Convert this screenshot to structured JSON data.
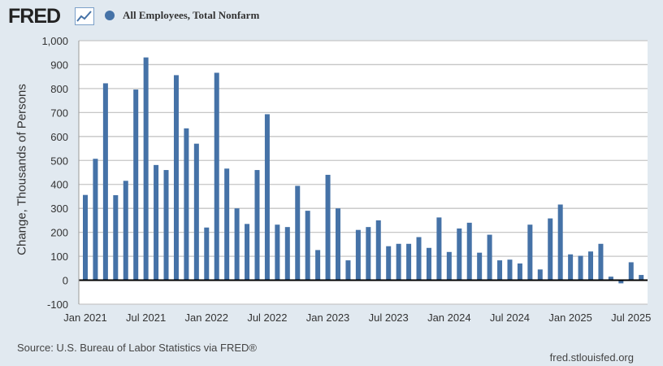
{
  "header": {
    "logo": "FRED",
    "series_name": "All Employees, Total Nonfarm"
  },
  "footer": {
    "source": "Source: U.S. Bureau of Labor Statistics via FRED®",
    "url": "fred.stlouisfed.org"
  },
  "chart_data": {
    "type": "bar",
    "title": "All Employees, Total Nonfarm",
    "ylabel": "Change, Thousands of Persons",
    "xlabel": "",
    "ylim": [
      -100,
      1000
    ],
    "grid": true,
    "bar_color": "#4572a7",
    "yticks": [
      "-100",
      "0",
      "100",
      "200",
      "300",
      "400",
      "500",
      "600",
      "700",
      "800",
      "900",
      "1,000"
    ],
    "xticks": [
      "Jan 2021",
      "Jul 2021",
      "Jan 2022",
      "Jul 2022",
      "Jan 2023",
      "Jul 2023",
      "Jan 2024",
      "Jul 2024",
      "Jan 2025",
      "Jul 2025"
    ],
    "start": "2021-01",
    "values": [
      356,
      507,
      822,
      355,
      415,
      796,
      930,
      481,
      460,
      856,
      634,
      570,
      220,
      866,
      466,
      300,
      235,
      460,
      693,
      232,
      222,
      394,
      290,
      126,
      440,
      300,
      83,
      210,
      222,
      250,
      142,
      152,
      152,
      180,
      135,
      262,
      118,
      216,
      240,
      115,
      190,
      83,
      86,
      70,
      232,
      45,
      258,
      316,
      108,
      102,
      120,
      152,
      15,
      -13,
      75,
      22
    ]
  }
}
